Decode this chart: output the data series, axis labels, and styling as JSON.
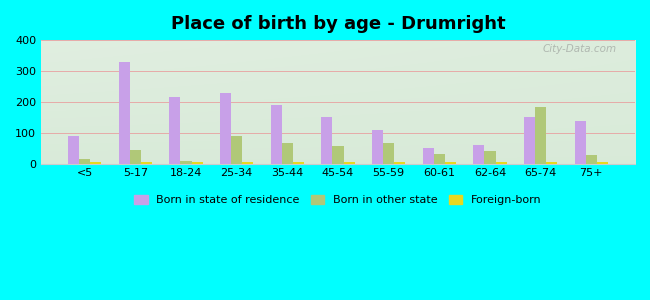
{
  "title": "Place of birth by age - Drumright",
  "categories": [
    "<5",
    "5-17",
    "18-24",
    "25-34",
    "35-44",
    "45-54",
    "55-59",
    "60-61",
    "62-64",
    "65-74",
    "75+"
  ],
  "born_in_state": [
    90,
    330,
    215,
    228,
    190,
    150,
    110,
    50,
    60,
    150,
    138
  ],
  "born_other_state": [
    15,
    45,
    8,
    88,
    65,
    58,
    68,
    30,
    40,
    182,
    28
  ],
  "foreign_born": [
    5,
    5,
    4,
    5,
    4,
    4,
    4,
    4,
    4,
    4,
    5
  ],
  "color_state": "#c8a0e8",
  "color_other": "#b0c878",
  "color_foreign": "#e8d820",
  "ylim": [
    0,
    400
  ],
  "yticks": [
    0,
    100,
    200,
    300,
    400
  ],
  "figure_bg": "#00ffff",
  "legend_labels": [
    "Born in state of residence",
    "Born in other state",
    "Foreign-born"
  ],
  "watermark": "City-Data.com"
}
